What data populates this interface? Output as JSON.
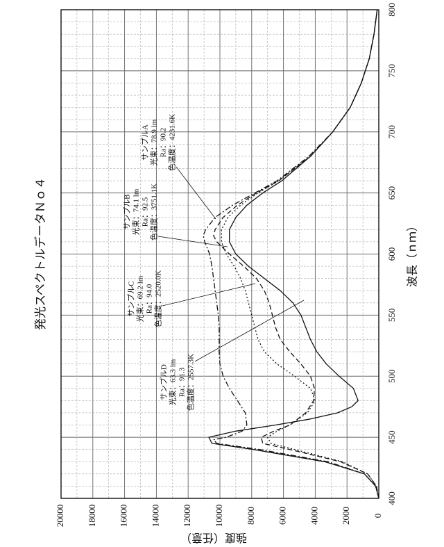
{
  "chart_data": {
    "type": "line",
    "title": "発光スペクトルデータＮｏ４",
    "xlabel": "波長（ｎｍ）",
    "ylabel": "強度（任意）",
    "xlim": [
      400,
      800
    ],
    "ylim": [
      0,
      20000
    ],
    "x_ticks": [
      "400",
      "450",
      "500",
      "550",
      "600",
      "650",
      "700",
      "750",
      "800"
    ],
    "y_ticks": [
      "0",
      "2000",
      "4000",
      "6000",
      "8000",
      "10000",
      "12000",
      "14000",
      "16000",
      "18000",
      "20000"
    ],
    "grid": true,
    "series": [
      {
        "name": "サンプルA",
        "style": "dashdot",
        "annotation": [
          "サンプルA",
          "光束：78.9 lm",
          "Ra：90.2",
          "色温度：4231.6K"
        ],
        "x": [
          400,
          410,
          420,
          430,
          440,
          445,
          448,
          450,
          455,
          460,
          470,
          480,
          490,
          500,
          510,
          520,
          530,
          540,
          550,
          560,
          570,
          580,
          590,
          600,
          610,
          615,
          620,
          630,
          640,
          650,
          660,
          680,
          700,
          720,
          740,
          760,
          780,
          800
        ],
        "y": [
          0,
          200,
          900,
          3200,
          7500,
          10200,
          10400,
          9600,
          8600,
          8300,
          8400,
          8900,
          9400,
          9800,
          10000,
          10050,
          10050,
          10050,
          10100,
          10200,
          10300,
          10400,
          10500,
          10650,
          10950,
          11050,
          10900,
          10300,
          9200,
          7800,
          6400,
          4400,
          2900,
          1800,
          1100,
          600,
          300,
          100
        ]
      },
      {
        "name": "サンプルB",
        "style": "dashed",
        "annotation": [
          "サンプルB",
          "光束：74.1 lm",
          "Ra：92.5",
          "色温度：3751.1K"
        ],
        "x": [
          400,
          410,
          420,
          430,
          440,
          445,
          450,
          455,
          460,
          470,
          480,
          490,
          500,
          510,
          520,
          530,
          540,
          550,
          560,
          570,
          580,
          590,
          600,
          610,
          615,
          620,
          630,
          640,
          650,
          660,
          680,
          700,
          720,
          740,
          760,
          780,
          800
        ],
        "y": [
          0,
          150,
          700,
          2400,
          5600,
          7300,
          7400,
          6600,
          5600,
          4600,
          4100,
          4050,
          4300,
          4900,
          5600,
          6200,
          6500,
          6700,
          6900,
          7200,
          7700,
          8500,
          9400,
          10200,
          10400,
          10300,
          9800,
          8900,
          7700,
          6300,
          4300,
          2900,
          1800,
          1100,
          600,
          300,
          100
        ]
      },
      {
        "name": "サンプルC",
        "style": "dotted",
        "annotation": [
          "サンプルC",
          "光束：69.2 lm",
          "Ra：94.0",
          "色温度：2520.0K"
        ],
        "x": [
          400,
          410,
          420,
          430,
          440,
          445,
          450,
          455,
          460,
          470,
          480,
          490,
          500,
          510,
          520,
          530,
          540,
          550,
          560,
          570,
          580,
          590,
          600,
          610,
          620,
          630,
          640,
          650,
          660,
          680,
          700,
          720,
          740,
          760,
          780,
          800
        ],
        "y": [
          0,
          150,
          700,
          2300,
          5300,
          6800,
          7000,
          6400,
          5600,
          4500,
          4000,
          4300,
          5300,
          6400,
          7200,
          7600,
          7800,
          8000,
          8200,
          8400,
          8700,
          9100,
          9600,
          9900,
          9900,
          9500,
          8700,
          7600,
          6300,
          4300,
          2900,
          1800,
          1100,
          600,
          300,
          100
        ]
      },
      {
        "name": "サンプルD",
        "style": "solid",
        "annotation": [
          "サンプルD",
          "光束：63.3 lm",
          "Ra：91.3",
          "色温度：2557.3K"
        ],
        "x": [
          400,
          410,
          420,
          430,
          440,
          445,
          450,
          455,
          460,
          465,
          470,
          475,
          480,
          490,
          500,
          510,
          520,
          530,
          540,
          550,
          560,
          570,
          580,
          590,
          600,
          610,
          620,
          630,
          640,
          650,
          660,
          680,
          700,
          720,
          740,
          760,
          780,
          800
        ],
        "y": [
          0,
          200,
          900,
          3400,
          7900,
          10500,
          10700,
          9000,
          6500,
          4300,
          2600,
          1700,
          1300,
          1600,
          2500,
          3300,
          3900,
          4300,
          4600,
          4900,
          5400,
          6200,
          7200,
          8200,
          9000,
          9400,
          9400,
          9000,
          8300,
          7300,
          6100,
          4300,
          2900,
          1800,
          1100,
          600,
          300,
          100
        ]
      }
    ]
  }
}
